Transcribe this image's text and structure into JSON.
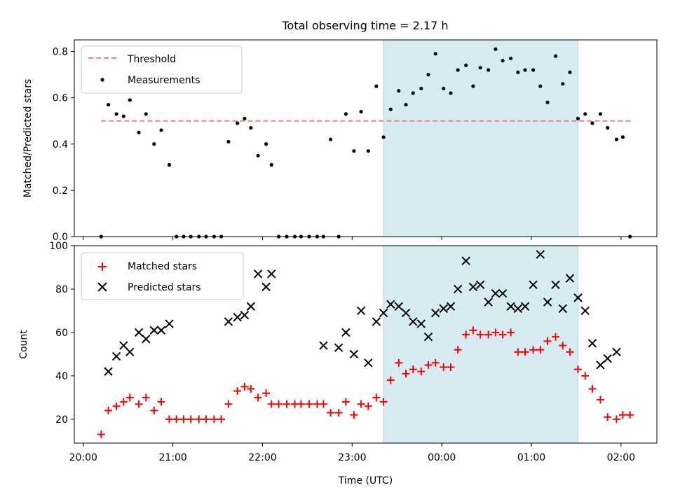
{
  "figure": {
    "title": "Total observing time = 2.17 h",
    "xlabel": "Time (UTC)",
    "x_ticks": [
      "20:00",
      "21:00",
      "22:00",
      "23:00",
      "00:00",
      "01:00",
      "02:00"
    ],
    "highlight_color": "#add8e6"
  },
  "chart_data": [
    {
      "type": "scatter",
      "ylabel": "Matched/Predicted stars",
      "ylim": [
        0,
        0.85
      ],
      "y_ticks": [
        0.0,
        0.2,
        0.4,
        0.6,
        0.8
      ],
      "xlim_hours": [
        -0.1,
        6.4
      ],
      "highlight_span_hours": [
        3.35,
        5.52
      ],
      "threshold": {
        "value": 0.5,
        "x_range_hours": [
          0.2,
          6.12
        ],
        "color": "#ff7f7f"
      },
      "legend": {
        "position": "upper left",
        "entries": [
          "Threshold",
          "Measurements"
        ]
      },
      "series": [
        {
          "name": "Measurements",
          "color": "#000000",
          "marker": "dot",
          "x_hours": [
            0.2,
            0.28,
            0.37,
            0.45,
            0.52,
            0.62,
            0.7,
            0.79,
            0.87,
            0.96,
            1.04,
            1.12,
            1.2,
            1.29,
            1.37,
            1.46,
            1.54,
            1.62,
            1.72,
            1.8,
            1.87,
            1.95,
            2.04,
            2.1,
            2.18,
            2.27,
            2.36,
            2.43,
            2.52,
            2.61,
            2.68,
            2.76,
            2.85,
            2.93,
            3.02,
            3.1,
            3.18,
            3.27,
            3.35,
            3.43,
            3.52,
            3.6,
            3.68,
            3.77,
            3.85,
            3.93,
            4.02,
            4.1,
            4.18,
            4.27,
            4.35,
            4.43,
            4.52,
            4.6,
            4.68,
            4.77,
            4.85,
            4.93,
            5.02,
            5.1,
            5.18,
            5.27,
            5.35,
            5.43,
            5.52,
            5.6,
            5.68,
            5.77,
            5.85,
            5.95,
            6.02,
            6.1
          ],
          "y": [
            0.0,
            0.57,
            0.53,
            0.52,
            0.59,
            0.45,
            0.53,
            0.4,
            0.46,
            0.31,
            0.0,
            0.0,
            0.0,
            0.0,
            0.0,
            0.0,
            0.0,
            0.41,
            0.49,
            0.51,
            0.47,
            0.35,
            0.4,
            0.31,
            0.0,
            0.0,
            0.0,
            0.0,
            0.0,
            0.0,
            0.0,
            0.42,
            0.0,
            0.53,
            0.37,
            0.54,
            0.37,
            0.65,
            0.43,
            0.55,
            0.63,
            0.57,
            0.62,
            0.64,
            0.7,
            0.79,
            0.64,
            0.62,
            0.72,
            0.74,
            0.65,
            0.73,
            0.72,
            0.81,
            0.76,
            0.77,
            0.71,
            0.72,
            0.72,
            0.65,
            0.58,
            0.78,
            0.66,
            0.71,
            0.51,
            0.53,
            0.49,
            0.53,
            0.47,
            0.42,
            0.43,
            0.0
          ]
        }
      ]
    },
    {
      "type": "scatter",
      "ylabel": "Count",
      "ylim": [
        9,
        100
      ],
      "y_ticks": [
        20,
        40,
        60,
        80,
        100
      ],
      "xlim_hours": [
        -0.1,
        6.4
      ],
      "highlight_span_hours": [
        3.35,
        5.52
      ],
      "legend": {
        "position": "upper left",
        "entries": [
          "Matched stars",
          "Predicted stars"
        ]
      },
      "series": [
        {
          "name": "Matched stars",
          "color": "#ff0000",
          "marker": "plus",
          "x_hours": [
            0.2,
            0.28,
            0.37,
            0.45,
            0.52,
            0.62,
            0.7,
            0.79,
            0.87,
            0.96,
            1.04,
            1.12,
            1.2,
            1.29,
            1.37,
            1.46,
            1.54,
            1.62,
            1.72,
            1.8,
            1.87,
            1.95,
            2.04,
            2.1,
            2.18,
            2.27,
            2.36,
            2.43,
            2.52,
            2.61,
            2.68,
            2.76,
            2.85,
            2.93,
            3.02,
            3.1,
            3.18,
            3.27,
            3.35,
            3.43,
            3.52,
            3.6,
            3.68,
            3.77,
            3.85,
            3.93,
            4.02,
            4.1,
            4.18,
            4.27,
            4.35,
            4.43,
            4.52,
            4.6,
            4.68,
            4.77,
            4.85,
            4.93,
            5.02,
            5.1,
            5.18,
            5.27,
            5.35,
            5.43,
            5.52,
            5.6,
            5.68,
            5.77,
            5.85,
            5.95,
            6.02,
            6.1
          ],
          "y": [
            13,
            24,
            26,
            28,
            30,
            27,
            30,
            24,
            28,
            20,
            20,
            20,
            20,
            20,
            20,
            20,
            20,
            27,
            33,
            35,
            34,
            30,
            32,
            27,
            27,
            27,
            27,
            27,
            27,
            27,
            27,
            23,
            23,
            28,
            22,
            27,
            26,
            30,
            28,
            38,
            46,
            41,
            43,
            42,
            45,
            46,
            44,
            44,
            52,
            59,
            61,
            59,
            59,
            60,
            59,
            60,
            51,
            51,
            52,
            52,
            56,
            58,
            54,
            51,
            43,
            40,
            34,
            29,
            21,
            20,
            22,
            22
          ]
        },
        {
          "name": "Predicted stars",
          "color": "#000000",
          "marker": "x",
          "x_hours": [
            0.28,
            0.37,
            0.45,
            0.52,
            0.62,
            0.7,
            0.79,
            0.87,
            0.96,
            1.62,
            1.72,
            1.8,
            1.87,
            1.95,
            2.04,
            2.1,
            2.68,
            2.85,
            2.93,
            3.02,
            3.1,
            3.18,
            3.27,
            3.35,
            3.43,
            3.52,
            3.6,
            3.68,
            3.77,
            3.85,
            3.93,
            4.02,
            4.1,
            4.18,
            4.27,
            4.35,
            4.43,
            4.52,
            4.6,
            4.68,
            4.77,
            4.85,
            4.93,
            5.02,
            5.1,
            5.18,
            5.27,
            5.35,
            5.43,
            5.52,
            5.6,
            5.68,
            5.77,
            5.85,
            5.95
          ],
          "y": [
            42,
            49,
            54,
            51,
            60,
            57,
            61,
            61,
            64,
            65,
            67,
            68,
            72,
            87,
            81,
            87,
            54,
            53,
            60,
            50,
            70,
            46,
            65,
            69,
            73,
            72,
            69,
            65,
            64,
            58,
            69,
            71,
            72,
            80,
            93,
            81,
            82,
            74,
            78,
            78,
            72,
            71,
            72,
            82,
            96,
            74,
            82,
            71,
            85,
            76,
            70,
            55,
            45,
            48,
            51
          ]
        }
      ]
    }
  ]
}
